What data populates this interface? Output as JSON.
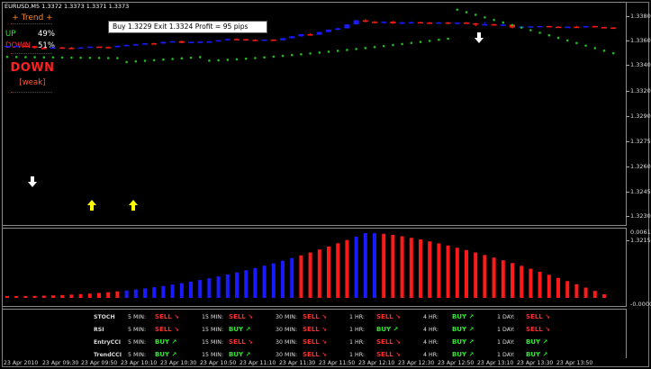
{
  "symbol_line": "EURUSD,M5  1.3372 1.3373 1.3371 1.3373",
  "trend_panel": {
    "title": "+ Trend +",
    "up_label": "UP",
    "up_pct": "49%",
    "down_label": "DOWN",
    "down_pct": "51%",
    "direction": "DOWN",
    "strength": "[weak]"
  },
  "trade_info": "Buy 1.3229 Exit 1.3324 Profit = 95 pips",
  "price_axis": [
    "1.3380",
    "1.3360",
    "1.3340",
    "1.3330",
    "1.3320",
    "1.3290",
    "1.3275",
    "1.3260",
    "1.3245",
    "1.3230",
    "1.3215"
  ],
  "hist_axis": [
    "0.00611",
    "-0.00008"
  ],
  "signal_table": {
    "rows": [
      {
        "name": "STOCH",
        "signals": [
          "SELL",
          "SELL",
          "SELL",
          "SELL",
          "BUY",
          "SELL"
        ]
      },
      {
        "name": "RSI",
        "signals": [
          "SELL",
          "BUY",
          "SELL",
          "BUY",
          "BUY",
          "SELL"
        ]
      },
      {
        "name": "EntryCCI",
        "signals": [
          "BUY",
          "SELL",
          "SELL",
          "SELL",
          "BUY",
          "BUY"
        ]
      },
      {
        "name": "TrendCCI",
        "signals": [
          "BUY",
          "BUY",
          "SELL",
          "SELL",
          "BUY",
          "BUY"
        ]
      }
    ],
    "timeframes": [
      "5 MIN:",
      "15 MIN:",
      "30 MIN:",
      "1 HR:",
      "4 HR:",
      "1 DAY:"
    ]
  },
  "time_axis": [
    "23 Apr 2010",
    "23 Apr 09:30",
    "23 Apr 09:50",
    "23 Apr 10:10",
    "23 Apr 10:30",
    "23 Apr 10:50",
    "23 Apr 11:10",
    "23 Apr 11:30",
    "23 Apr 11:50",
    "23 Apr 12:10",
    "23 Apr 12:30",
    "23 Apr 12:50",
    "23 Apr 13:10",
    "23 Apr 13:30",
    "23 Apr 13:50"
  ],
  "colors": {
    "bull": "#1a1aff",
    "bear": "#ff1a1a",
    "psar": "#22bb22",
    "buy_signal": "#2aee2a",
    "sell_signal": "#ff2a2a",
    "arrow_buy": "#ffff00",
    "arrow_sell": "#ffffff"
  },
  "icons": {
    "buy_arrow": "up-arrow-icon",
    "sell_arrow": "down-arrow-icon"
  }
}
